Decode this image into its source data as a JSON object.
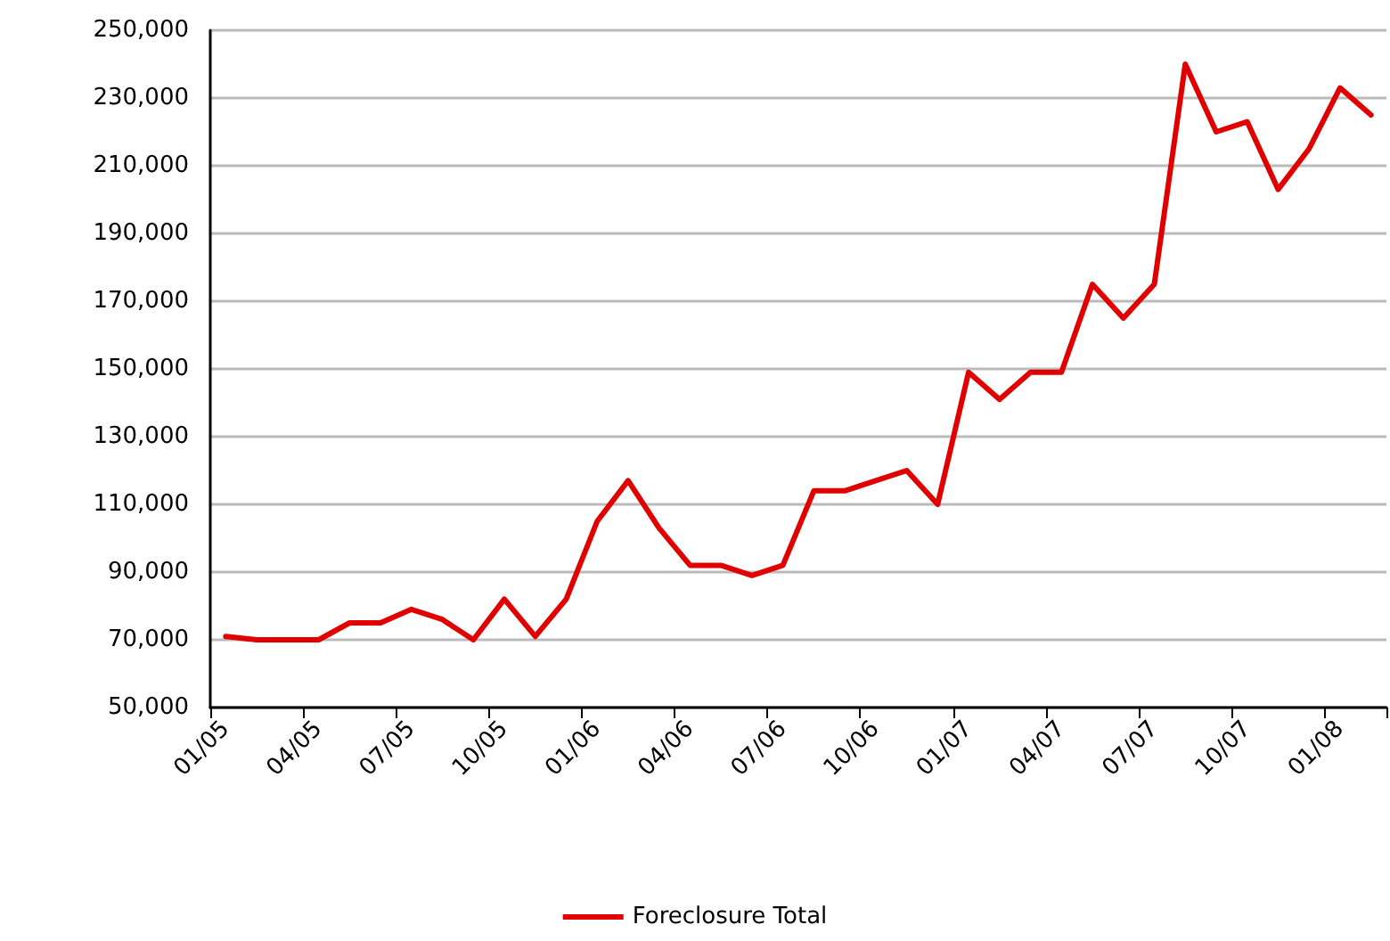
{
  "chart_data": {
    "type": "line",
    "categories": [
      "01/05",
      null,
      null,
      "04/05",
      null,
      null,
      "07/05",
      null,
      null,
      "10/05",
      null,
      null,
      "01/06",
      null,
      null,
      "04/06",
      null,
      null,
      "07/06",
      null,
      null,
      "10/06",
      null,
      null,
      "01/07",
      null,
      null,
      "04/07",
      null,
      null,
      "07/07",
      null,
      null,
      "10/07",
      null,
      null,
      "01/08",
      null
    ],
    "series": [
      {
        "name": "Foreclosure Total",
        "color": "#e00000",
        "values": [
          71000,
          70000,
          70000,
          70000,
          75000,
          75000,
          79000,
          76000,
          70000,
          82000,
          71000,
          82000,
          105000,
          117000,
          103000,
          92000,
          92000,
          89000,
          92000,
          114000,
          114000,
          117000,
          120000,
          110000,
          149000,
          141000,
          149000,
          149000,
          175000,
          165000,
          175000,
          240000,
          220000,
          223000,
          203000,
          215000,
          233000,
          225000
        ]
      }
    ],
    "ylim": [
      50000,
      250000
    ],
    "yticks": [
      {
        "value": 50000,
        "label": "50,000"
      },
      {
        "value": 70000,
        "label": "70,000"
      },
      {
        "value": 90000,
        "label": "90,000"
      },
      {
        "value": 110000,
        "label": "110,000"
      },
      {
        "value": 130000,
        "label": "130,000"
      },
      {
        "value": 150000,
        "label": "150,000"
      },
      {
        "value": 170000,
        "label": "170,000"
      },
      {
        "value": 190000,
        "label": "190,000"
      },
      {
        "value": 210000,
        "label": "210,000"
      },
      {
        "value": 230000,
        "label": "230,000"
      },
      {
        "value": 250000,
        "label": "250,000"
      }
    ],
    "grid": "y",
    "legend": "bottom",
    "marker": "none",
    "line_style": "solid"
  }
}
